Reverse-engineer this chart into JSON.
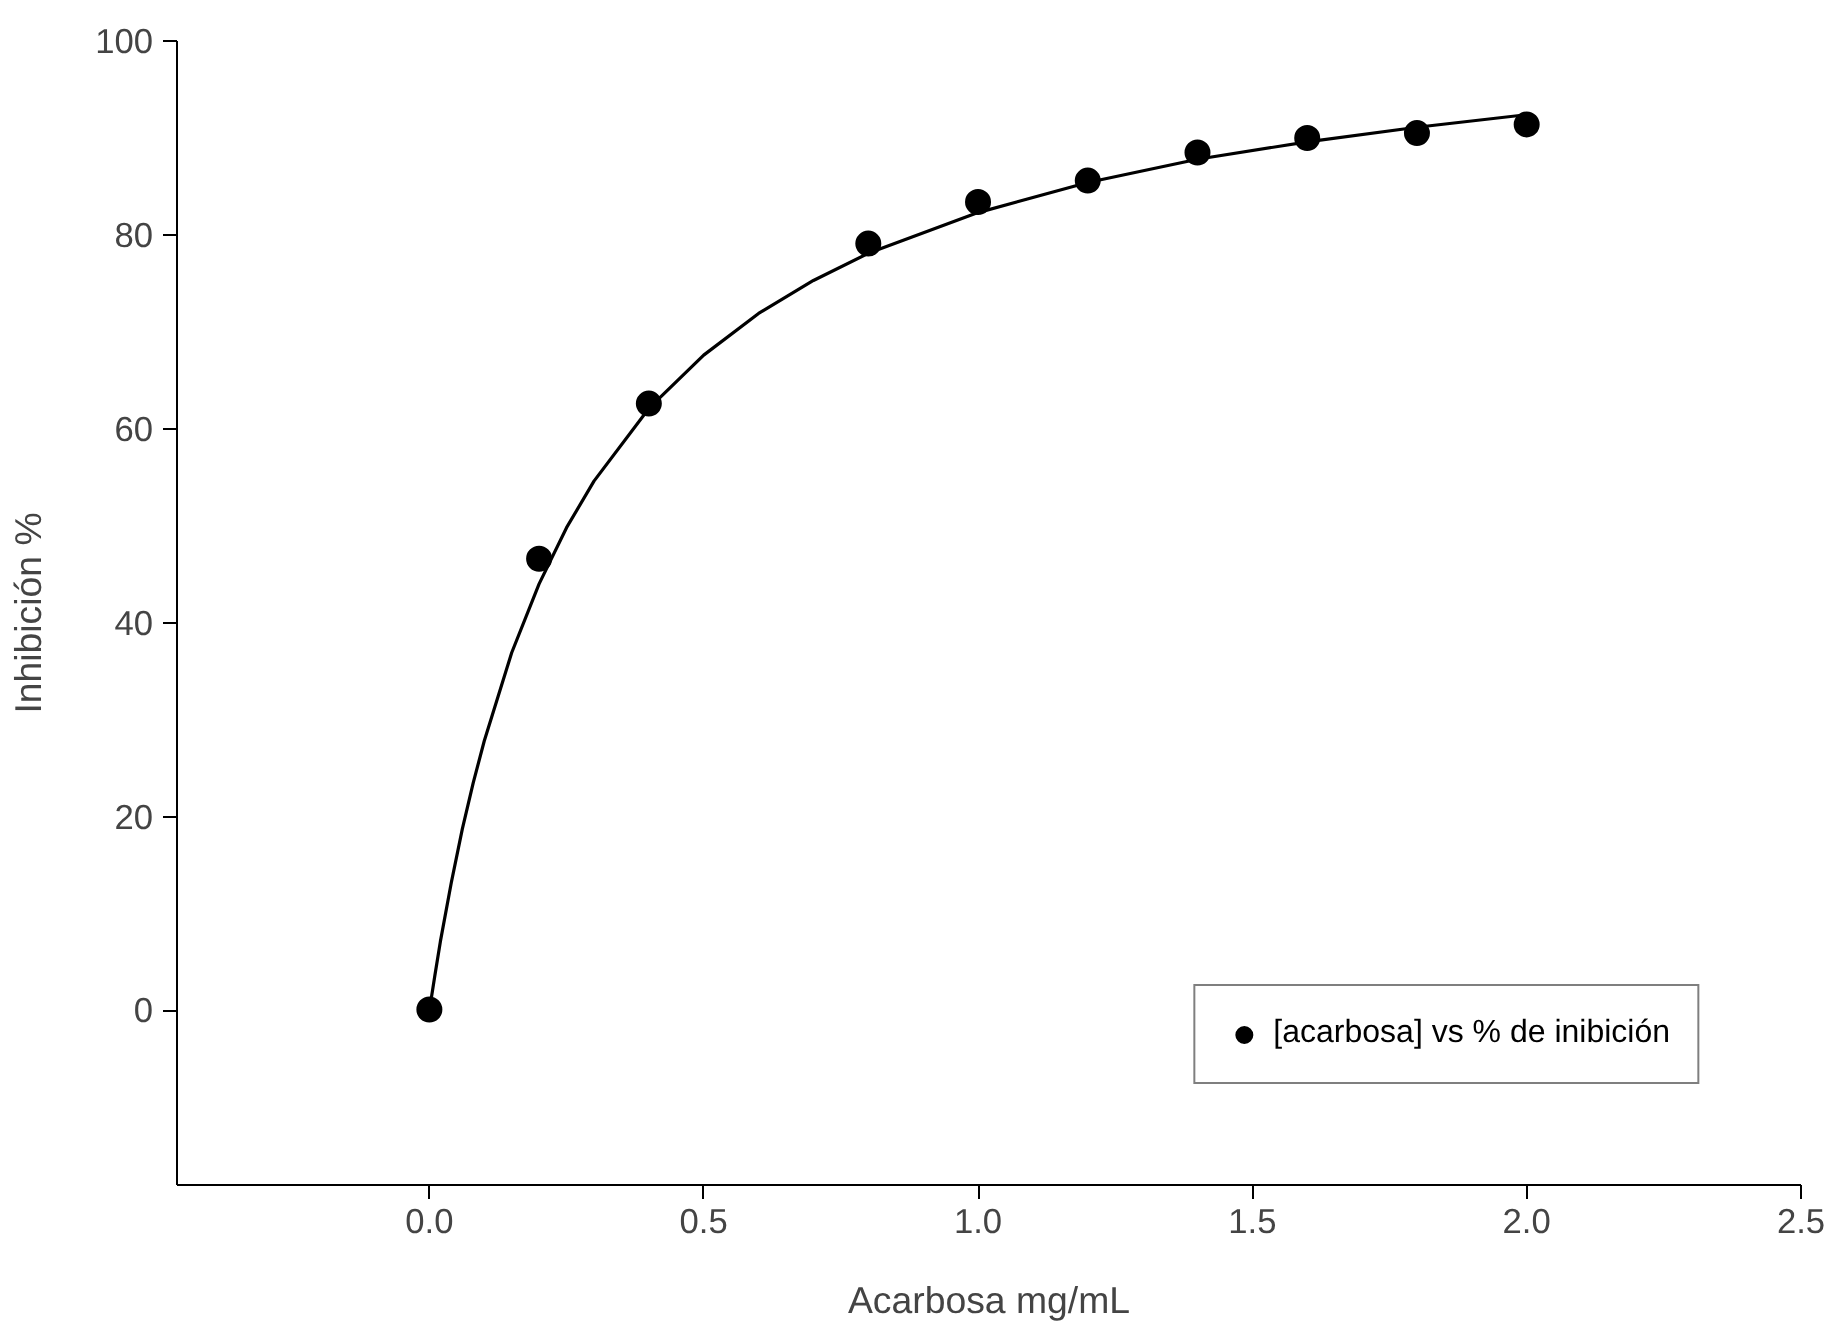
{
  "chart_data": {
    "type": "scatter",
    "xlabel": "Acarbosa mg/mL",
    "ylabel": "Inhibición %",
    "xlim": [
      -0.46,
      2.5
    ],
    "ylim": [
      -18,
      100
    ],
    "xticks": [
      {
        "value": 0,
        "label": "0.0"
      },
      {
        "value": 0.5,
        "label": "0.5"
      },
      {
        "value": 1,
        "label": "1.0"
      },
      {
        "value": 1.5,
        "label": "1.5"
      },
      {
        "value": 2,
        "label": "2.0"
      },
      {
        "value": 2.5,
        "label": "2.5"
      }
    ],
    "yticks": [
      0,
      20,
      40,
      60,
      80,
      100
    ],
    "grid": false,
    "legend": "bottom right",
    "series": [
      {
        "name": "[acarbosa] vs % de inibición",
        "marker": "circle",
        "color": "#000000",
        "x": [
          0,
          0.2,
          0.4,
          0.8,
          1.0,
          1.2,
          1.4,
          1.6,
          1.8,
          2.0
        ],
        "values": [
          0.1,
          46.6,
          62.6,
          79.1,
          83.4,
          85.6,
          88.5,
          90.0,
          90.5,
          91.4
        ]
      },
      {
        "type": "line",
        "marker": "none",
        "color": "#000000",
        "line_style": "solid",
        "x": [
          0,
          0.01,
          0.02,
          0.04,
          0.06,
          0.08,
          0.1,
          0.15,
          0.2,
          0.25,
          0.3,
          0.4,
          0.5,
          0.6,
          0.7,
          0.8,
          1.0,
          1.2,
          1.4,
          1.6,
          1.8,
          2.0
        ],
        "values": [
          0,
          3.6,
          7.1,
          13.2,
          18.7,
          23.5,
          27.8,
          36.9,
          44.0,
          49.8,
          54.6,
          62.1,
          67.6,
          71.9,
          75.3,
          78.1,
          82.3,
          85.4,
          87.8,
          89.6,
          91.1,
          92.4
        ]
      }
    ]
  }
}
